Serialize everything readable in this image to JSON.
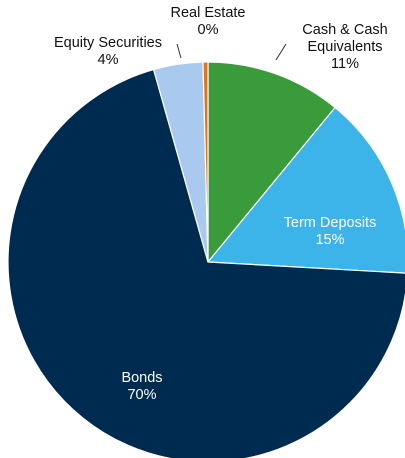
{
  "chart_data": {
    "type": "pie",
    "categories": [
      "Cash & Cash Equivalents",
      "Term Deposits",
      "Bonds",
      "Equity Securities",
      "Real Estate"
    ],
    "values": [
      11,
      15,
      70,
      4,
      0.4
    ],
    "value_labels": [
      "11%",
      "15%",
      "70%",
      "4%",
      "0%"
    ],
    "colors": [
      "#3a9b3a",
      "#3cb4e9",
      "#002b51",
      "#a9c9ee",
      "#e2731f"
    ]
  }
}
